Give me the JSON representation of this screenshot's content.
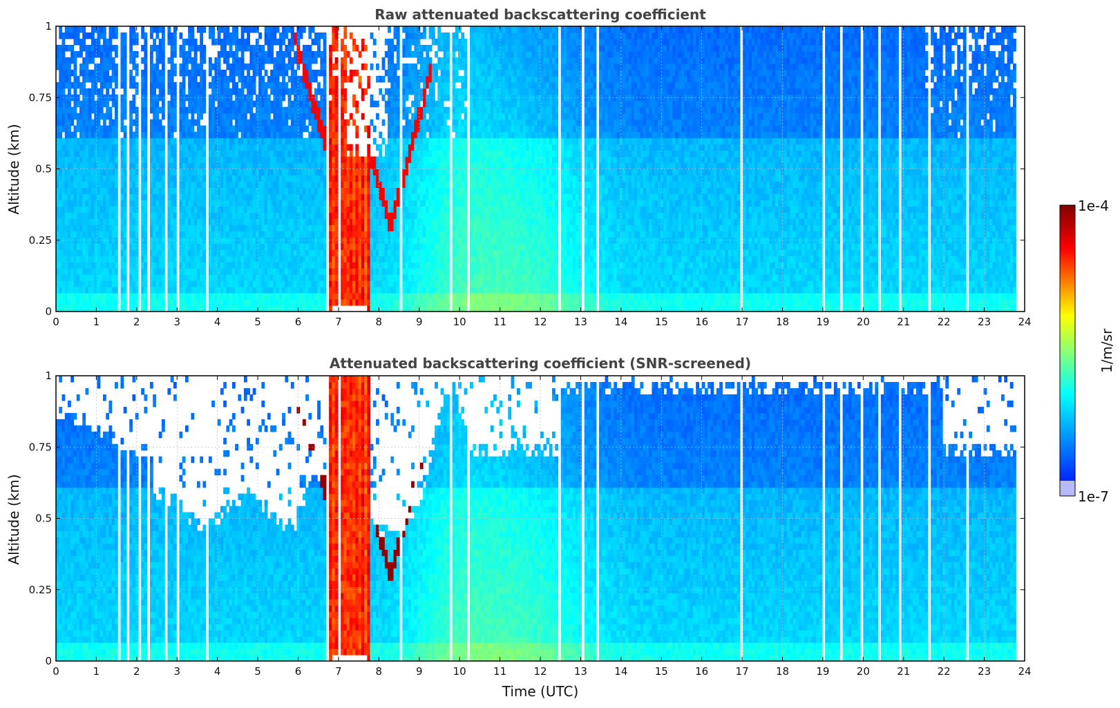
{
  "chart_data": [
    {
      "type": "heatmap",
      "title": "Raw attenuated backscattering coefficient",
      "xlabel": "",
      "ylabel": "Altitude (km)",
      "xlim": [
        0,
        24
      ],
      "ylim": [
        0,
        1
      ],
      "x_ticks": [
        "0",
        "1",
        "2",
        "3",
        "4",
        "5",
        "6",
        "7",
        "8",
        "9",
        "10",
        "11",
        "12",
        "13",
        "14",
        "15",
        "16",
        "17",
        "18",
        "19",
        "20",
        "21",
        "22",
        "23",
        "24"
      ],
      "y_ticks": [
        "0",
        "0.25",
        "0.5",
        "0.75",
        "1"
      ],
      "grid": true,
      "screened": false,
      "data_end_hour": 23.8,
      "features": {
        "aerosol_layer_top_km": 0.6,
        "cloud_bands_hours": [
          6.7,
          7.8
        ],
        "cloud_descending_base_km": [
          0.85,
          0.3
        ],
        "enhanced_aerosol_hours": [
          10.3,
          12.5
        ]
      }
    },
    {
      "type": "heatmap",
      "title": "Attenuated backscattering coefficient (SNR-screened)",
      "xlabel": "Time (UTC)",
      "ylabel": "Altitude (km)",
      "xlim": [
        0,
        24
      ],
      "ylim": [
        0,
        1
      ],
      "x_ticks": [
        "0",
        "1",
        "2",
        "3",
        "4",
        "5",
        "6",
        "7",
        "8",
        "9",
        "10",
        "11",
        "12",
        "13",
        "14",
        "15",
        "16",
        "17",
        "18",
        "19",
        "20",
        "21",
        "22",
        "23",
        "24"
      ],
      "y_ticks": [
        "0",
        "0.25",
        "0.5",
        "0.75",
        "1"
      ],
      "grid": true,
      "screened": true,
      "data_end_hour": 23.8,
      "features": {
        "aerosol_layer_top_km": 0.6,
        "cloud_bands_hours": [
          6.7,
          7.8
        ],
        "cloud_descending_base_km": [
          0.85,
          0.3
        ],
        "enhanced_aerosol_hours": [
          10.3,
          12.5
        ]
      }
    }
  ],
  "colorbar": {
    "max_label": "1e-4",
    "min_label": "1e-7",
    "unit_label": "1/m/sr",
    "colormap": "jet",
    "colors": [
      "#0000ff",
      "#00ffff",
      "#ffff00",
      "#ff0000",
      "#800000"
    ]
  },
  "missing_profile_hours": [
    1.55,
    1.8,
    2.05,
    2.3,
    2.75,
    3.0,
    3.75,
    6.75,
    7.0,
    8.55,
    9.8,
    10.2,
    12.0,
    12.45,
    13.05,
    13.4,
    17.0,
    19.0,
    19.45,
    19.95,
    20.4,
    20.9,
    21.65,
    22.1,
    22.6
  ]
}
